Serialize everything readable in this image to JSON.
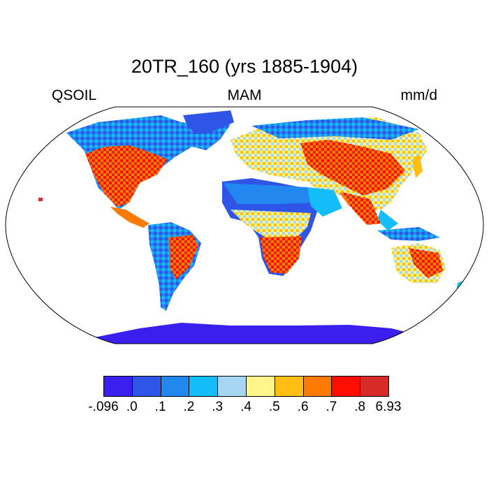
{
  "title": "20TR_160 (yrs 1885-1904)",
  "left_string": "QSOIL",
  "center_string": "MAM",
  "right_string": "mm/d",
  "projection": "Robinson",
  "land_colors_summary": "soil runoff field over land, oceans white",
  "colorbar": {
    "colors": [
      "#3a1fef",
      "#2e55e6",
      "#2288f0",
      "#14bdf7",
      "#a7d6f2",
      "#fff58a",
      "#ffbe14",
      "#ff7a00",
      "#ff0d00",
      "#d82a28"
    ],
    "labels": [
      "-.096",
      ".0",
      ".1",
      ".2",
      ".3",
      ".4",
      ".5",
      ".6",
      ".7",
      ".8",
      "6.93"
    ]
  }
}
